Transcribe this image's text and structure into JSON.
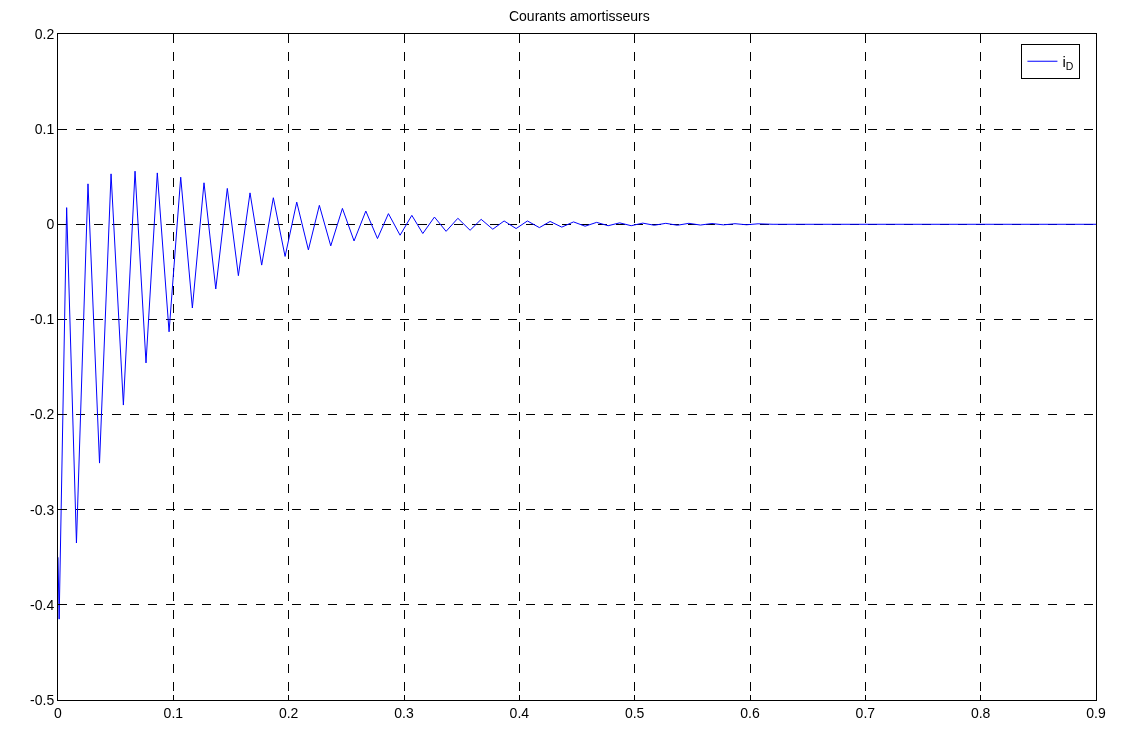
{
  "chart_data": {
    "type": "line",
    "title": "Courants amortisseurs",
    "x": [
      0,
      0.001,
      0.0075,
      0.016,
      0.026,
      0.036,
      0.046,
      0.0567,
      0.0668,
      0.0763,
      0.0861,
      0.0963,
      0.1064,
      0.1165,
      0.1266,
      0.1368,
      0.1468,
      0.1564,
      0.1665,
      0.1766,
      0.1867,
      0.1969,
      0.207,
      0.2171,
      0.2266,
      0.2365,
      0.2466,
      0.2567,
      0.2669,
      0.277,
      0.2865,
      0.2966,
      0.3068,
      0.3163,
      0.3264,
      0.3365,
      0.3467,
      0.3573,
      0.3669,
      0.377,
      0.3868,
      0.3972,
      0.407,
      0.4174,
      0.4267,
      0.4368,
      0.447,
      0.457,
      0.467,
      0.477,
      0.487,
      0.497,
      0.507,
      0.517,
      0.527,
      0.537,
      0.547,
      0.557,
      0.567,
      0.577,
      0.587,
      0.597,
      0.607,
      0.62,
      0.9
    ],
    "series": [
      {
        "name": "i$_{D}$",
        "color": "#0000ff",
        "values": [
          -0.35,
          -0.415,
          0.0175,
          -0.335,
          0.0425,
          -0.251,
          0.053,
          -0.19,
          0.0558,
          -0.1457,
          0.054,
          -0.113,
          0.0495,
          -0.088,
          0.0436,
          -0.068,
          0.0377,
          -0.054,
          0.033,
          -0.0429,
          0.0279,
          -0.0338,
          0.0233,
          -0.0269,
          0.0199,
          -0.0227,
          0.0167,
          -0.0175,
          0.0139,
          -0.015,
          0.0112,
          -0.0115,
          0.0094,
          -0.0097,
          0.0076,
          -0.0074,
          0.0063,
          -0.0063,
          0.0052,
          -0.0052,
          0.0035,
          -0.0045,
          0.0035,
          -0.0035,
          0.003,
          -0.003,
          0.0025,
          -0.002,
          0.002,
          -0.0015,
          0.0015,
          -0.0015,
          0.0012,
          -0.001,
          0.001,
          -0.001,
          0.001,
          -0.0008,
          0.0008,
          -0.0006,
          0.0006,
          -0.0005,
          0.0005,
          0,
          0
        ]
      }
    ],
    "xlim": [
      0,
      0.9
    ],
    "xticks": [
      0,
      0.1,
      0.2,
      0.3,
      0.4,
      0.5,
      0.6,
      0.7,
      0.8,
      0.9
    ],
    "ylim": [
      -0.5,
      0.2
    ],
    "yticks": [
      -0.5,
      -0.4,
      -0.3,
      -0.2,
      -0.1,
      0,
      0.1,
      0.2
    ],
    "grid": true,
    "legend": "top right",
    "marker": "none",
    "line_style": "solid"
  }
}
